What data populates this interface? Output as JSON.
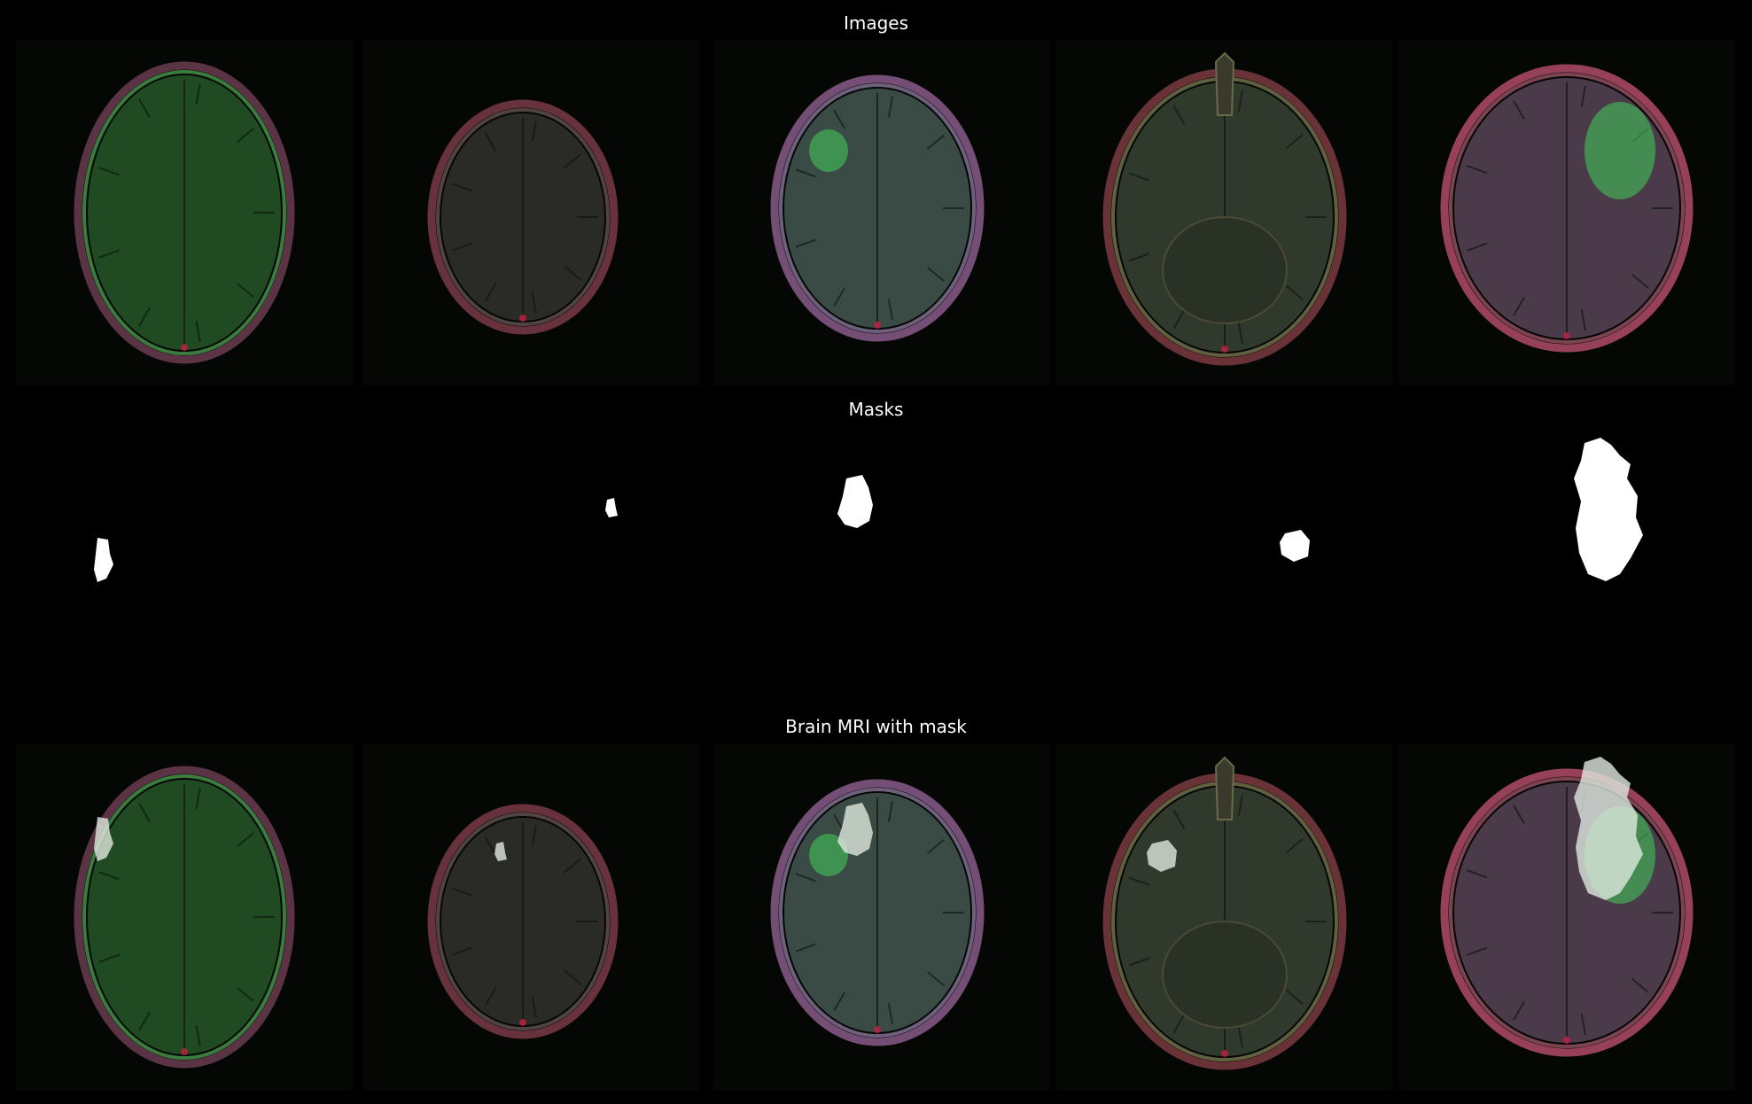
{
  "rows": {
    "images": {
      "title": "Images"
    },
    "masks": {
      "title": "Masks"
    },
    "overlay": {
      "title": "Brain MRI with mask"
    }
  },
  "panels": [
    {
      "tint": "#1f4a22",
      "rim": "#3f8a45",
      "ring": "#6a3c50",
      "mask_shape": "small-left",
      "variant": 0
    },
    {
      "tint": "#2a2a26",
      "rim": "#5a4a4a",
      "ring": "#7a3a48",
      "mask_shape": "tiny",
      "variant": 1
    },
    {
      "tint": "#3a4a44",
      "rim": "#7a6a8a",
      "ring": "#8a5a8a",
      "mask_shape": "medium",
      "variant": 2
    },
    {
      "tint": "#2f3a2c",
      "rim": "#6a6a48",
      "ring": "#7a3a40",
      "mask_shape": "small-mid",
      "variant": 3
    },
    {
      "tint": "#4a3a4a",
      "rim": "#8a4a5a",
      "ring": "#b04a6a",
      "mask_shape": "large",
      "variant": 4
    }
  ]
}
